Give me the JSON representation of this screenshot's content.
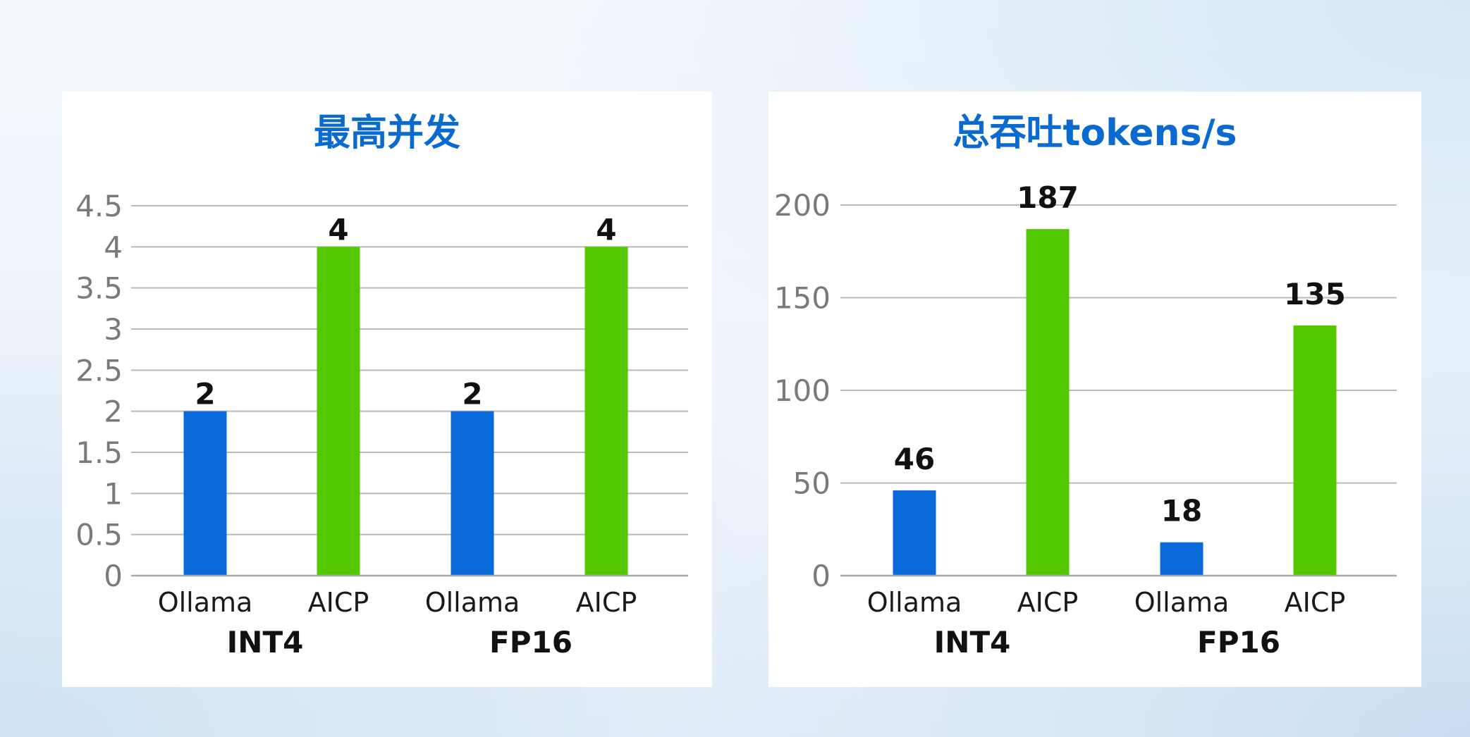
{
  "chart_data": [
    {
      "type": "bar",
      "title": "最高并发",
      "groups": [
        "INT4",
        "FP16"
      ],
      "categories": [
        "Ollama",
        "AICP",
        "Ollama",
        "AICP"
      ],
      "series": [
        {
          "values": [
            2,
            4,
            2,
            4
          ]
        }
      ],
      "bar_colors": [
        "#0a6ad9",
        "#53c800",
        "#0a6ad9",
        "#53c800"
      ],
      "ylim": [
        0,
        4.5
      ],
      "yticks": [
        "0",
        "0.5",
        "1",
        "1.5",
        "2",
        "2.5",
        "3",
        "3.5",
        "4",
        "4.5"
      ],
      "grid": true,
      "data_labels": [
        "2",
        "4",
        "2",
        "4"
      ]
    },
    {
      "type": "bar",
      "title": "总吞吐tokens/s",
      "groups": [
        "INT4",
        "FP16"
      ],
      "categories": [
        "Ollama",
        "AICP",
        "Ollama",
        "AICP"
      ],
      "series": [
        {
          "values": [
            46,
            187,
            18,
            135
          ]
        }
      ],
      "bar_colors": [
        "#0a6ad9",
        "#53c800",
        "#0a6ad9",
        "#53c800"
      ],
      "ylim": [
        0,
        200
      ],
      "yticks": [
        "0",
        "50",
        "100",
        "150",
        "200"
      ],
      "grid": true,
      "data_labels": [
        "46",
        "187",
        "18",
        "135"
      ]
    }
  ]
}
